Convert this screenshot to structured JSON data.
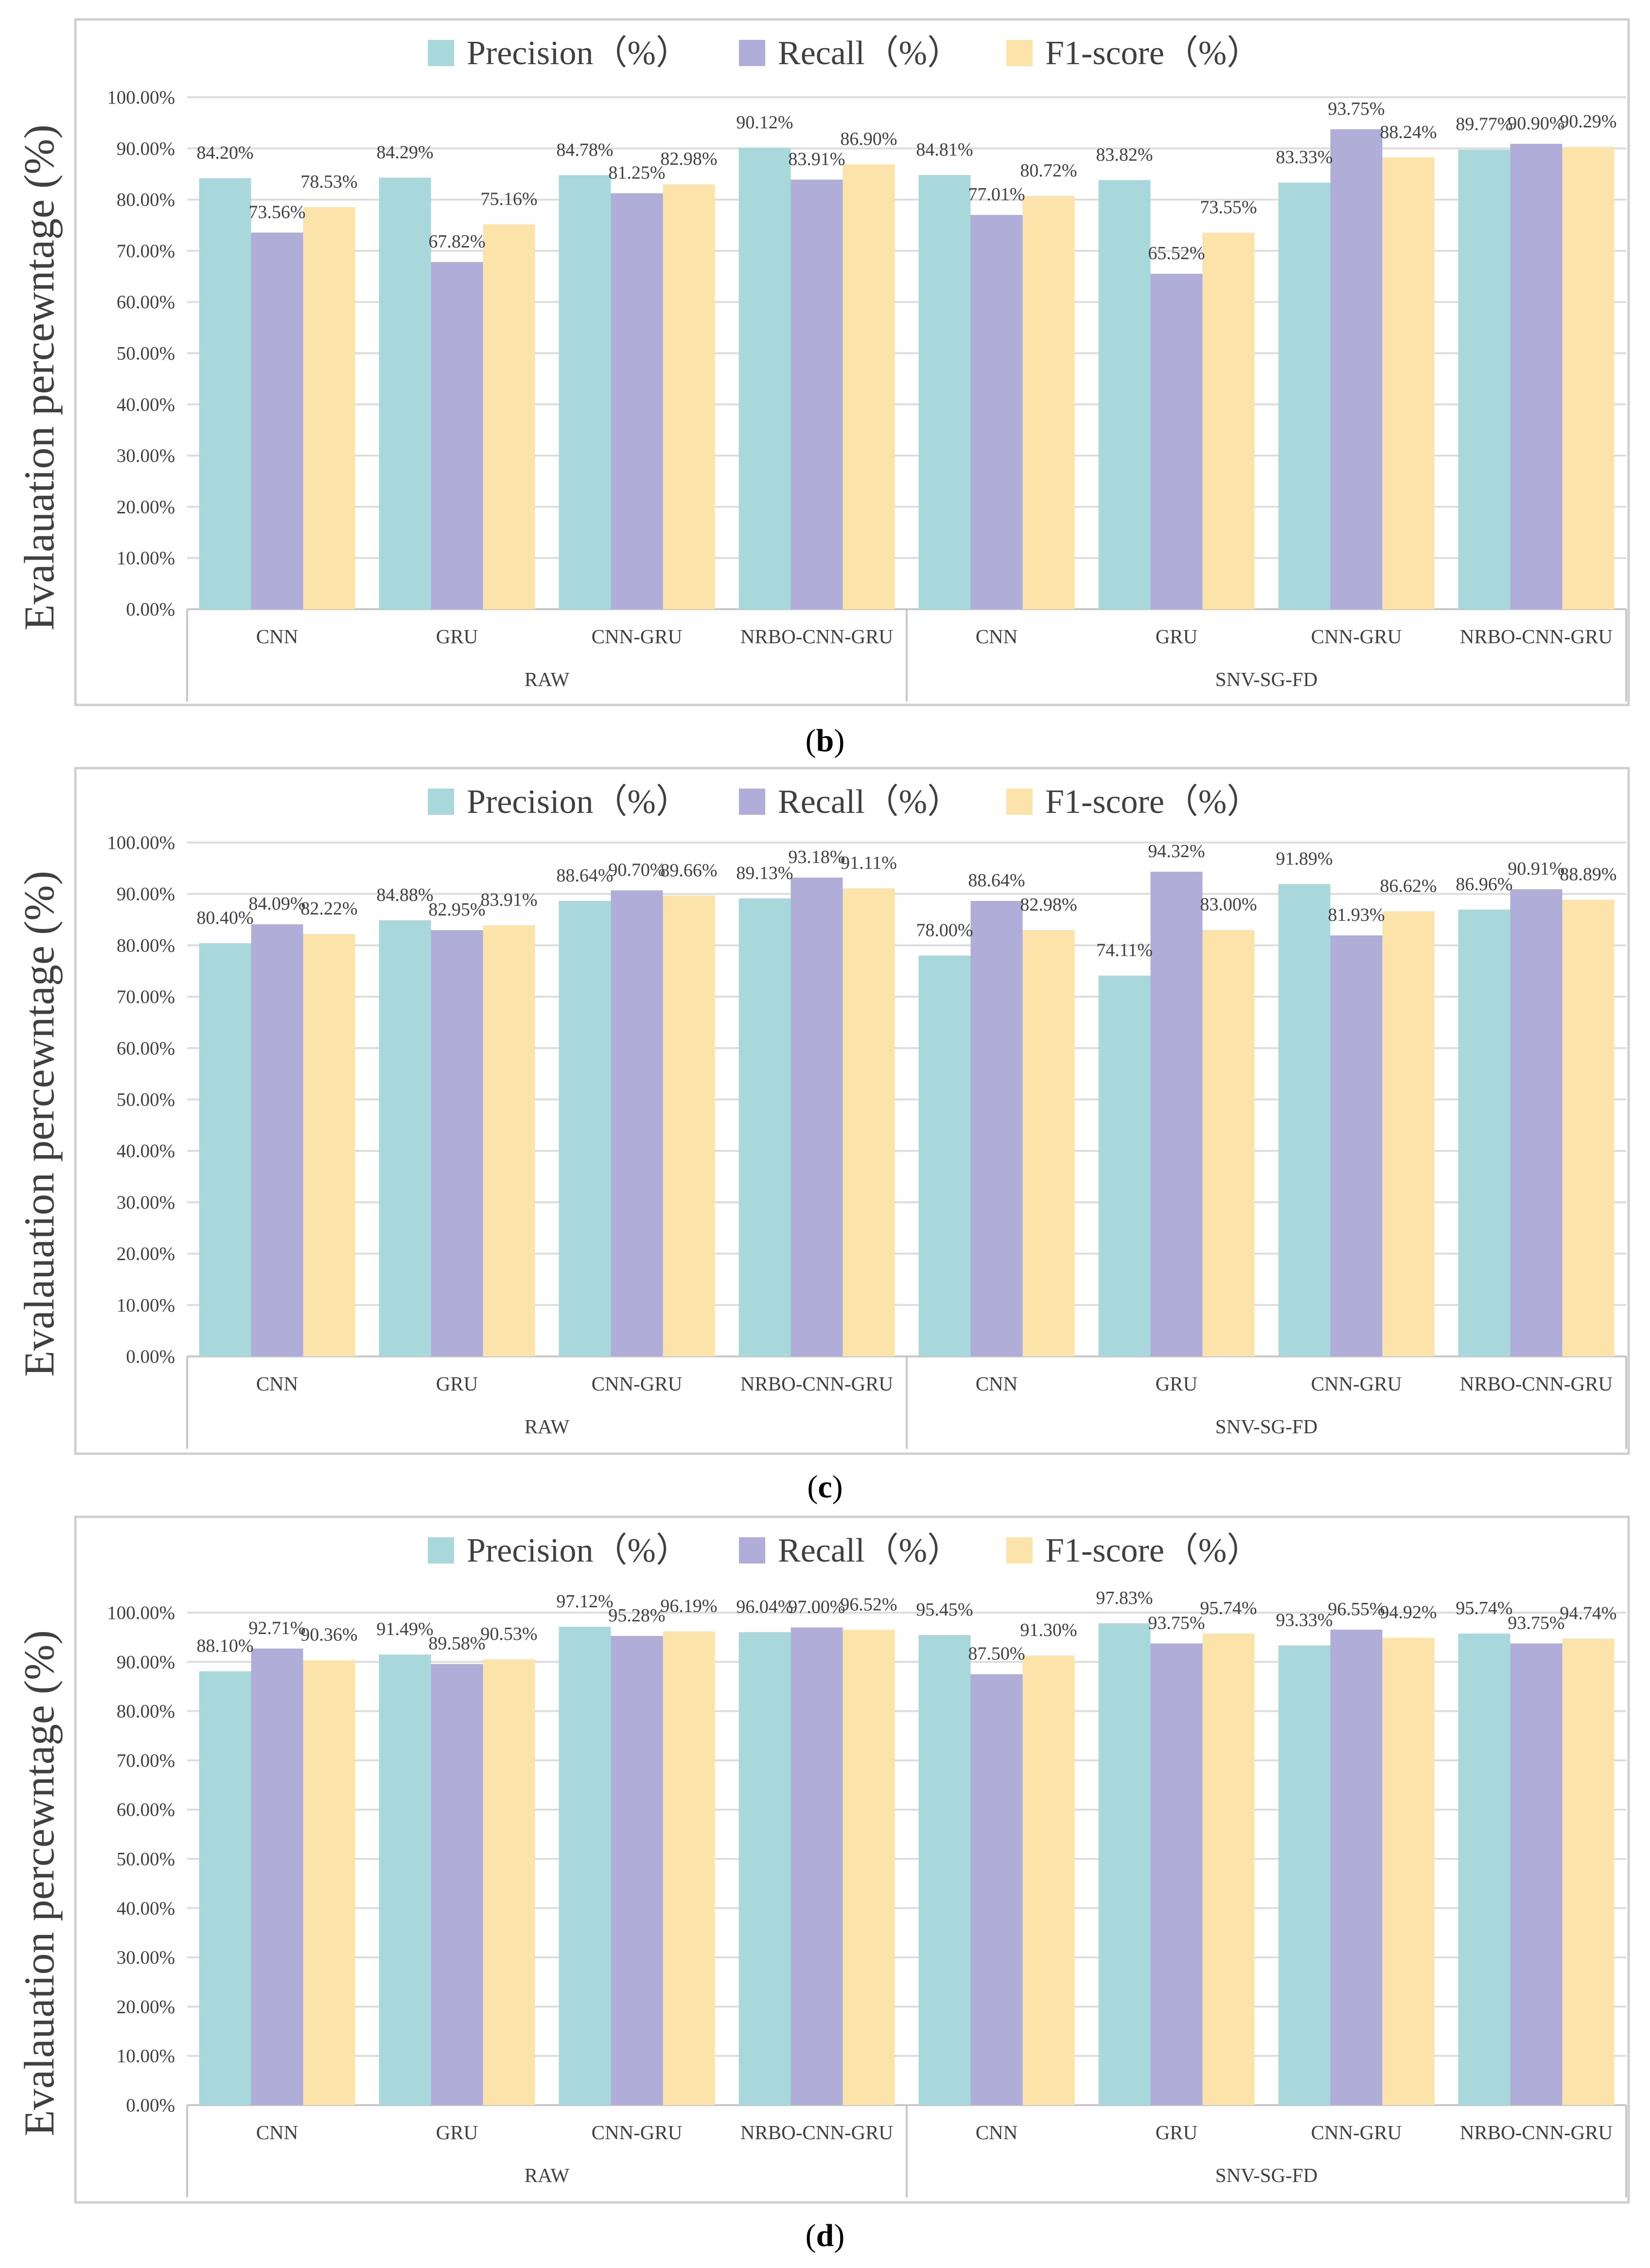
{
  "colors": {
    "precision": "#a8d8dc",
    "recall": "#b0aed8",
    "f1": "#fbe3a9"
  },
  "chart_data": [
    {
      "type": "bar",
      "caption_letter": "b",
      "legend": [
        "Precision（%）",
        "Recall（%）",
        "F1-score（%）"
      ],
      "ylabel": "Evalauation percewntage (%)",
      "ylim": [
        0,
        100
      ],
      "yticks": [
        "0.00%",
        "10.00%",
        "20.00%",
        "30.00%",
        "40.00%",
        "50.00%",
        "60.00%",
        "70.00%",
        "80.00%",
        "90.00%",
        "100.00%"
      ],
      "groups": [
        "RAW",
        "SNV-SG-FD"
      ],
      "categories": [
        "CNN",
        "GRU",
        "CNN-GRU",
        "NRBO-CNN-GRU",
        "CNN",
        "GRU",
        "CNN-GRU",
        "NRBO-CNN-GRU"
      ],
      "series": [
        {
          "name": "Precision（%）",
          "values": [
            84.2,
            84.29,
            84.78,
            90.12,
            84.81,
            83.82,
            83.33,
            89.77
          ]
        },
        {
          "name": "Recall（%）",
          "values": [
            73.56,
            67.82,
            81.25,
            83.91,
            77.01,
            65.52,
            93.75,
            90.9
          ]
        },
        {
          "name": "F1-score（%）",
          "values": [
            78.53,
            75.16,
            82.98,
            86.9,
            80.72,
            73.55,
            88.24,
            90.29
          ]
        }
      ],
      "data_labels": [
        [
          "84.20%",
          "84.29%",
          "84.78%",
          "90.12%",
          "84.81%",
          "83.82%",
          "83.33%",
          "89.77%"
        ],
        [
          "73.56%",
          "67.82%",
          "81.25%",
          "83.91%",
          "77.01%",
          "65.52%",
          "93.75%",
          "90.90%"
        ],
        [
          "78.53%",
          "75.16%",
          "82.98%",
          "86.90%",
          "80.72%",
          "73.55%",
          "88.24%",
          "90.29%"
        ]
      ]
    },
    {
      "type": "bar",
      "caption_letter": "c",
      "legend": [
        "Precision（%）",
        "Recall（%）",
        "F1-score（%）"
      ],
      "ylabel": "Evalauation percewntage (%)",
      "ylim": [
        0,
        100
      ],
      "yticks": [
        "0.00%",
        "10.00%",
        "20.00%",
        "30.00%",
        "40.00%",
        "50.00%",
        "60.00%",
        "70.00%",
        "80.00%",
        "90.00%",
        "100.00%"
      ],
      "groups": [
        "RAW",
        "SNV-SG-FD"
      ],
      "categories": [
        "CNN",
        "GRU",
        "CNN-GRU",
        "NRBO-CNN-GRU",
        "CNN",
        "GRU",
        "CNN-GRU",
        "NRBO-CNN-GRU"
      ],
      "series": [
        {
          "name": "Precision（%）",
          "values": [
            80.4,
            84.88,
            88.64,
            89.13,
            78.0,
            74.11,
            91.89,
            86.96
          ]
        },
        {
          "name": "Recall（%）",
          "values": [
            84.09,
            82.95,
            90.7,
            93.18,
            88.64,
            94.32,
            81.93,
            90.91
          ]
        },
        {
          "name": "F1-score（%）",
          "values": [
            82.22,
            83.91,
            89.66,
            91.11,
            82.98,
            83.0,
            86.62,
            88.89
          ]
        }
      ],
      "data_labels": [
        [
          "80.40%",
          "84.88%",
          "88.64%",
          "89.13%",
          "78.00%",
          "74.11%",
          "91.89%",
          "86.96%"
        ],
        [
          "84.09%",
          "82.95%",
          "90.70%",
          "93.18%",
          "88.64%",
          "94.32%",
          "81.93%",
          "90.91%"
        ],
        [
          "82.22%",
          "83.91%",
          "89.66%",
          "91.11%",
          "82.98%",
          "83.00%",
          "86.62%",
          "88.89%"
        ]
      ]
    },
    {
      "type": "bar",
      "caption_letter": "d",
      "legend": [
        "Precision（%）",
        "Recall（%）",
        "F1-score（%）"
      ],
      "ylabel": "Evalauation percewntage (%)",
      "ylim": [
        0,
        100
      ],
      "yticks": [
        "0.00%",
        "10.00%",
        "20.00%",
        "30.00%",
        "40.00%",
        "50.00%",
        "60.00%",
        "70.00%",
        "80.00%",
        "90.00%",
        "100.00%"
      ],
      "groups": [
        "RAW",
        "SNV-SG-FD"
      ],
      "categories": [
        "CNN",
        "GRU",
        "CNN-GRU",
        "NRBO-CNN-GRU",
        "CNN",
        "GRU",
        "CNN-GRU",
        "NRBO-CNN-GRU"
      ],
      "series": [
        {
          "name": "Precision（%）",
          "values": [
            88.1,
            91.49,
            97.12,
            96.04,
            95.45,
            97.83,
            93.33,
            95.74
          ]
        },
        {
          "name": "Recall（%）",
          "values": [
            92.71,
            89.58,
            95.28,
            97.0,
            87.5,
            93.75,
            96.55,
            93.75
          ]
        },
        {
          "name": "F1-score（%）",
          "values": [
            90.36,
            90.53,
            96.19,
            96.52,
            91.3,
            95.74,
            94.92,
            94.74
          ]
        }
      ],
      "data_labels": [
        [
          "88.10%",
          "91.49%",
          "97.12%",
          "96.04%",
          "95.45%",
          "97.83%",
          "93.33%",
          "95.74%"
        ],
        [
          "92.71%",
          "89.58%",
          "95.28%",
          "97.00%",
          "87.50%",
          "93.75%",
          "96.55%",
          "93.75%"
        ],
        [
          "90.36%",
          "90.53%",
          "96.19%",
          "96.52%",
          "91.30%",
          "95.74%",
          "94.92%",
          "94.74%"
        ]
      ]
    }
  ]
}
